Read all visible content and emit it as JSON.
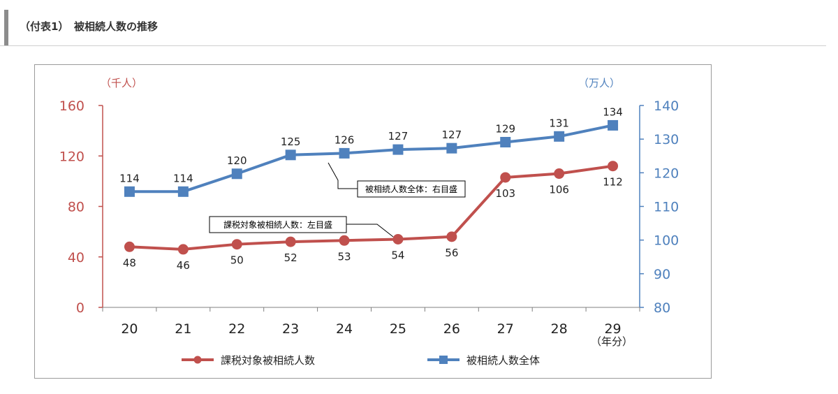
{
  "page": {
    "title": "（付表1）　被相続人数の推移"
  },
  "chart_data": {
    "type": "line",
    "categories": [
      "20",
      "21",
      "22",
      "23",
      "24",
      "25",
      "26",
      "27",
      "28",
      "29"
    ],
    "x_unit": "（年分）",
    "left_axis": {
      "unit": "（千人）",
      "range": [
        0,
        160
      ],
      "ticks": [
        0,
        40,
        80,
        120,
        160
      ],
      "color": "#c0504d"
    },
    "right_axis": {
      "unit": "（万人）",
      "range": [
        80,
        140
      ],
      "ticks": [
        80,
        90,
        100,
        110,
        120,
        130,
        140
      ],
      "color": "#4f81bd"
    },
    "series": [
      {
        "name": "課税対象被相続人数",
        "axis": "left",
        "color": "#c0504d",
        "marker": "circle",
        "values": [
          48,
          46,
          50,
          52,
          53,
          54,
          56,
          103,
          106,
          112
        ],
        "labels": [
          "48",
          "46",
          "50",
          "52",
          "53",
          "54",
          "56",
          "103",
          "106",
          "112"
        ],
        "annotation": "課税対象被相続人数：左目盛"
      },
      {
        "name": "被相続人数全体",
        "axis": "right",
        "color": "#4f81bd",
        "marker": "square",
        "values": [
          114.4,
          114.4,
          119.7,
          125.3,
          125.8,
          126.9,
          127.3,
          129.1,
          130.8,
          134.1
        ],
        "labels": [
          "114",
          "114",
          "120",
          "125",
          "126",
          "127",
          "127",
          "129",
          "131",
          "134"
        ],
        "annotation": "被相続人数全体：右目盛"
      }
    ]
  }
}
